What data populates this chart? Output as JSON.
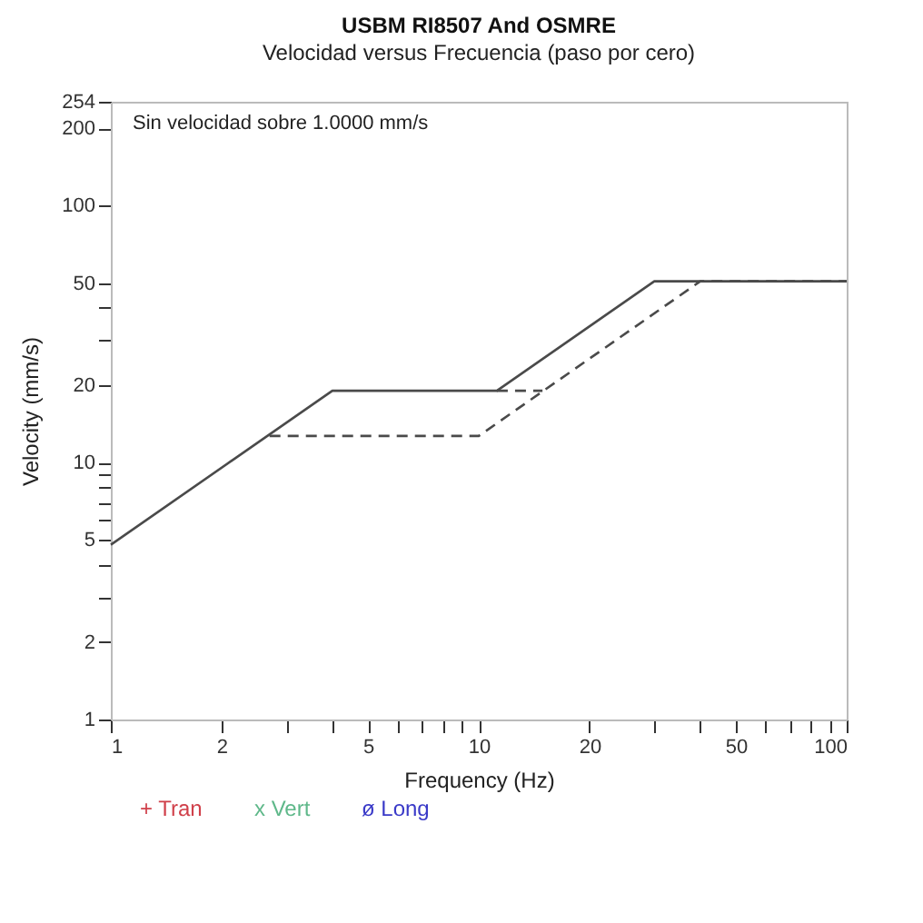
{
  "chart_data": {
    "type": "line",
    "title": "USBM RI8507 And OSMRE",
    "subtitle": "Velocidad versus Frecuencia (paso por cero)",
    "xlabel": "Frequency (Hz)",
    "ylabel": "Velocity (mm/s)",
    "annotations": [
      "Sin velocidad sobre 1.0000 mm/s"
    ],
    "log": "xy",
    "grid": false,
    "marker": "none",
    "xlim": [
      1,
      100
    ],
    "ylim": [
      1,
      254
    ],
    "xticks": [
      1,
      2,
      {
        "value": 3,
        "label": null
      },
      {
        "value": 4,
        "label": null
      },
      5,
      {
        "value": 6,
        "label": null
      },
      {
        "value": 7,
        "label": null
      },
      {
        "value": 8,
        "label": null
      },
      {
        "value": 9,
        "label": null
      },
      10,
      20,
      {
        "value": 30,
        "label": null
      },
      {
        "value": 40,
        "label": null
      },
      50,
      {
        "value": 60,
        "label": null
      },
      {
        "value": 70,
        "label": null
      },
      {
        "value": 80,
        "label": null
      },
      {
        "value": 90,
        "label": null
      },
      100
    ],
    "yticks": [
      1,
      2,
      {
        "value": 3,
        "label": null
      },
      {
        "value": 4,
        "label": null
      },
      5,
      {
        "value": 6,
        "label": null
      },
      {
        "value": 7,
        "label": null
      },
      {
        "value": 8,
        "label": null
      },
      {
        "value": 9,
        "label": null
      },
      10,
      20,
      {
        "value": 30,
        "label": null
      },
      {
        "value": 40,
        "label": null
      },
      50,
      100,
      200,
      254
    ],
    "series": [
      {
        "color": "#4a4a4a",
        "line_style": "solid",
        "x": [
          1,
          4,
          11.2,
          30,
          100
        ],
        "values": [
          4.79,
          19.05,
          19.05,
          50.8,
          50.8
        ]
      },
      {
        "color": "#4a4a4a",
        "line_style": "dashed",
        "x": [
          2.7,
          10,
          40,
          100
        ],
        "values": [
          12.7,
          12.7,
          50.8,
          50.8
        ]
      },
      {
        "color": "#4a4a4a",
        "line_style": "dashed",
        "x": [
          11.2,
          14.9
        ],
        "values": [
          19.05,
          19.05
        ]
      },
      {
        "name": "+ Tran",
        "color": "#d0404a"
      },
      {
        "name": "x Vert",
        "color": "#5fb88a"
      },
      {
        "name": "ø Long",
        "color": "#3a3ac8"
      }
    ]
  }
}
